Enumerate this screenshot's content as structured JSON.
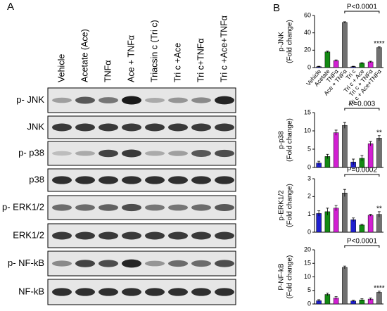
{
  "panel_a": {
    "label": "A",
    "lanes": [
      "Vehicle",
      "Acetate (Ace)",
      "TNFα",
      "Ace + TNFα",
      "Triacsin c (Tri c)",
      "Tri c +Ace",
      "Tri c+TNFα",
      "Tri c +Ace+TNFα"
    ],
    "rows": [
      "p- JNK",
      "JNK",
      "p- p38",
      "p38",
      "p- ERK1/2",
      "ERK1/2",
      "p- NF-kB",
      "NF-kB"
    ]
  },
  "panel_b_label": "B",
  "chart_data": [
    {
      "type": "bar",
      "ylabel": [
        "p-JNK",
        "(Fold change)"
      ],
      "categories": [
        "Vehicle",
        "Acetate",
        "TNFα",
        "Ace + TNFα",
        "Tri c",
        "Tri c + Ace",
        "Tri c + TNFα",
        "Tri c + Ace+TNFα"
      ],
      "values": [
        1,
        18,
        8,
        52,
        1,
        5,
        6.5,
        23
      ],
      "errors": [
        0.5,
        1,
        0.8,
        0.8,
        0.5,
        0.6,
        0.8,
        1
      ],
      "colors": [
        "#1f1fd0",
        "#138a13",
        "#d21fd2",
        "#707070",
        "#1f1fd0",
        "#138a13",
        "#d21fd2",
        "#707070"
      ],
      "ylim": [
        0,
        60
      ],
      "yticks": [
        0,
        20,
        40,
        60
      ],
      "significance": "P<0.0001",
      "stars": "****"
    },
    {
      "type": "bar",
      "ylabel": [
        "p-p38",
        "(Fold change)"
      ],
      "values": [
        1.2,
        3,
        9.5,
        11.5,
        1.5,
        2.5,
        6.5,
        8
      ],
      "errors": [
        0.5,
        0.6,
        0.7,
        0.8,
        0.8,
        0.8,
        0.6,
        0.7
      ],
      "colors": [
        "#1f1fd0",
        "#138a13",
        "#d21fd2",
        "#707070",
        "#1f1fd0",
        "#138a13",
        "#d21fd2",
        "#707070"
      ],
      "ylim": [
        0,
        15
      ],
      "yticks": [
        0,
        5,
        10,
        15
      ],
      "significance": "P=0.003",
      "stars": "**"
    },
    {
      "type": "bar",
      "ylabel": [
        "p-ERK1/2",
        "(Fold change)"
      ],
      "values": [
        1.05,
        1.15,
        1.35,
        2.2,
        0.7,
        0.4,
        0.95,
        1
      ],
      "errors": [
        0.15,
        0.2,
        0.15,
        0.2,
        0.1,
        0.05,
        0.05,
        0.15
      ],
      "colors": [
        "#1f1fd0",
        "#138a13",
        "#d21fd2",
        "#707070",
        "#1f1fd0",
        "#138a13",
        "#d21fd2",
        "#707070"
      ],
      "ylim": [
        0,
        3
      ],
      "yticks": [
        0,
        1,
        2,
        3
      ],
      "significance": "P=0.0002",
      "stars": "**"
    },
    {
      "type": "bar",
      "ylabel": [
        "P-NF-kB",
        "(Fold change)"
      ],
      "values": [
        1.2,
        3.5,
        2.2,
        13.5,
        1.1,
        1.5,
        1.8,
        4.3
      ],
      "errors": [
        0.4,
        0.5,
        0.5,
        0.5,
        0.3,
        0.4,
        0.4,
        0.4
      ],
      "colors": [
        "#1f1fd0",
        "#138a13",
        "#d21fd2",
        "#707070",
        "#1f1fd0",
        "#138a13",
        "#d21fd2",
        "#707070"
      ],
      "ylim": [
        0,
        20
      ],
      "yticks": [
        0,
        5,
        10,
        15,
        20
      ],
      "significance": "P<0.0001",
      "stars": "****"
    }
  ]
}
